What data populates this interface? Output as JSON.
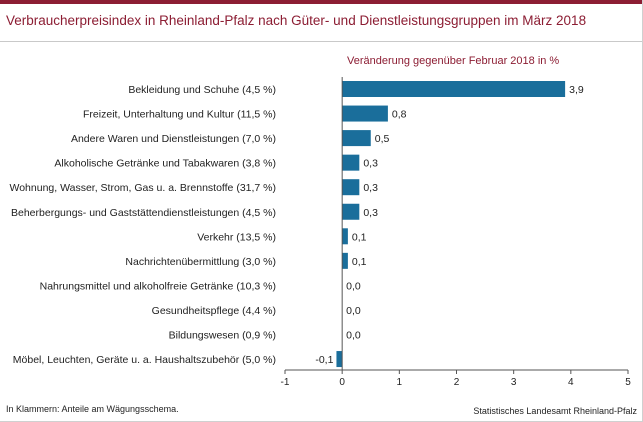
{
  "header": {
    "title": "Verbraucherpreisindex in Rheinland-Pfalz nach Güter- und Dienstleistungsgruppen im März 2018"
  },
  "footer": {
    "note": "In Klammern: Anteile am Wägungsschema.",
    "source": "Statistisches Landesamt Rheinland-Pfalz"
  },
  "colors": {
    "accent": "#8c1d33",
    "bar": "#1a6e9b"
  },
  "chart_data": {
    "type": "bar",
    "orientation": "horizontal",
    "title": "Verbraucherpreisindex in Rheinland-Pfalz nach Güter- und Dienstleistungsgruppen im März 2018",
    "subtitle": "Veränderung gegenüber Februar 2018 in %",
    "categories": [
      "Bekleidung und Schuhe (4,5 %)",
      "Freizeit, Unterhaltung und Kultur (11,5 %)",
      "Andere Waren und Dienstleistungen (7,0 %)",
      "Alkoholische Getränke und Tabakwaren (3,8 %)",
      "Wohnung, Wasser, Strom, Gas u. a. Brennstoffe (31,7 %)",
      "Beherbergungs- und Gaststättendienstleistungen (4,5 %)",
      "Verkehr (13,5 %)",
      "Nachrichtenübermittlung (3,0 %)",
      "Nahrungsmittel und alkoholfreie Getränke (10,3 %)",
      "Gesundheitspflege (4,4 %)",
      "Bildungswesen (0,9 %)",
      "Möbel, Leuchten, Geräte u. a. Haushaltszubehör (5,0 %)"
    ],
    "values": [
      3.9,
      0.8,
      0.5,
      0.3,
      0.3,
      0.3,
      0.1,
      0.1,
      0.0,
      0.0,
      0.0,
      -0.1
    ],
    "value_labels": [
      "3,9",
      "0,8",
      "0,5",
      "0,3",
      "0,3",
      "0,3",
      "0,1",
      "0,1",
      "0,0",
      "0,0",
      "0,0",
      "-0,1"
    ],
    "xlim": [
      -1,
      5
    ],
    "xticks": [
      -1,
      0,
      1,
      2,
      3,
      4,
      5
    ],
    "xtick_labels": [
      "-1",
      "0",
      "1",
      "2",
      "3",
      "4",
      "5"
    ],
    "grid": false
  }
}
